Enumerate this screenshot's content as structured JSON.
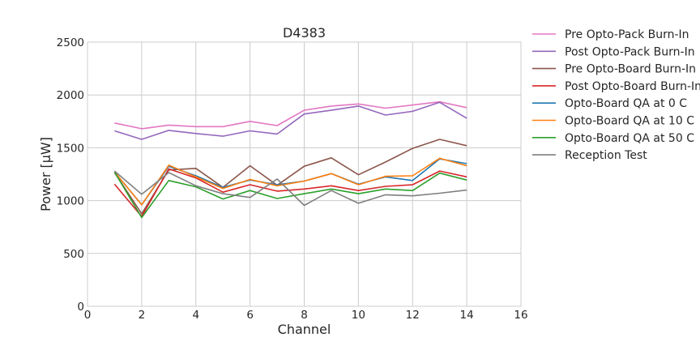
{
  "chart_data": {
    "type": "line",
    "title": "D4383",
    "xlabel": "Channel",
    "ylabel": "Power [μW]",
    "xlim": [
      0,
      16
    ],
    "ylim": [
      0,
      2500
    ],
    "xticks": [
      0,
      2,
      4,
      6,
      8,
      10,
      12,
      14,
      16
    ],
    "yticks": [
      0,
      500,
      1000,
      1500,
      2000,
      2500
    ],
    "grid": true,
    "legend_position": "outside-right",
    "x": [
      1,
      2,
      3,
      4,
      5,
      6,
      7,
      8,
      9,
      10,
      11,
      12,
      13,
      14
    ],
    "series": [
      {
        "name": "Pre Opto-Pack Burn-In",
        "color": "#e377c2",
        "values": [
          1735,
          1680,
          1715,
          1700,
          1700,
          1750,
          1710,
          1855,
          1895,
          1915,
          1875,
          1905,
          1935,
          1880
        ]
      },
      {
        "name": "Post Opto-Pack Burn-In",
        "color": "#9467bd",
        "values": [
          1660,
          1580,
          1665,
          1635,
          1610,
          1660,
          1630,
          1820,
          1855,
          1895,
          1810,
          1845,
          1930,
          1780
        ]
      },
      {
        "name": "Pre Opto-Board Burn-In",
        "color": "#8c564b",
        "values": [
          1265,
          875,
          1290,
          1305,
          1125,
          1330,
          1145,
          1325,
          1405,
          1245,
          1365,
          1495,
          1580,
          1520
        ]
      },
      {
        "name": "Post Opto-Board Burn-In",
        "color": "#d62728",
        "values": [
          1155,
          850,
          1300,
          1215,
          1080,
          1150,
          1090,
          1110,
          1140,
          1095,
          1135,
          1150,
          1280,
          1225
        ]
      },
      {
        "name": "Opto-Board QA at 0 C",
        "color": "#1f77b4",
        "values": [
          1270,
          960,
          1325,
          1235,
          1125,
          1195,
          1150,
          1185,
          1255,
          1155,
          1225,
          1190,
          1395,
          1350
        ]
      },
      {
        "name": "Opto-Board QA at 10 C",
        "color": "#ff7f0e",
        "values": [
          1270,
          960,
          1335,
          1225,
          1115,
          1200,
          1140,
          1185,
          1255,
          1150,
          1230,
          1235,
          1400,
          1330
        ]
      },
      {
        "name": "Opto-Board QA at 50 C",
        "color": "#2ca02c",
        "values": [
          1270,
          840,
          1190,
          1130,
          1015,
          1095,
          1020,
          1065,
          1110,
          1065,
          1110,
          1095,
          1260,
          1195
        ]
      },
      {
        "name": "Reception Test",
        "color": "#7f7f7f",
        "values": [
          1280,
          1060,
          1265,
          1140,
          1065,
          1030,
          1205,
          955,
          1095,
          975,
          1055,
          1045,
          1070,
          1100
        ]
      }
    ]
  }
}
